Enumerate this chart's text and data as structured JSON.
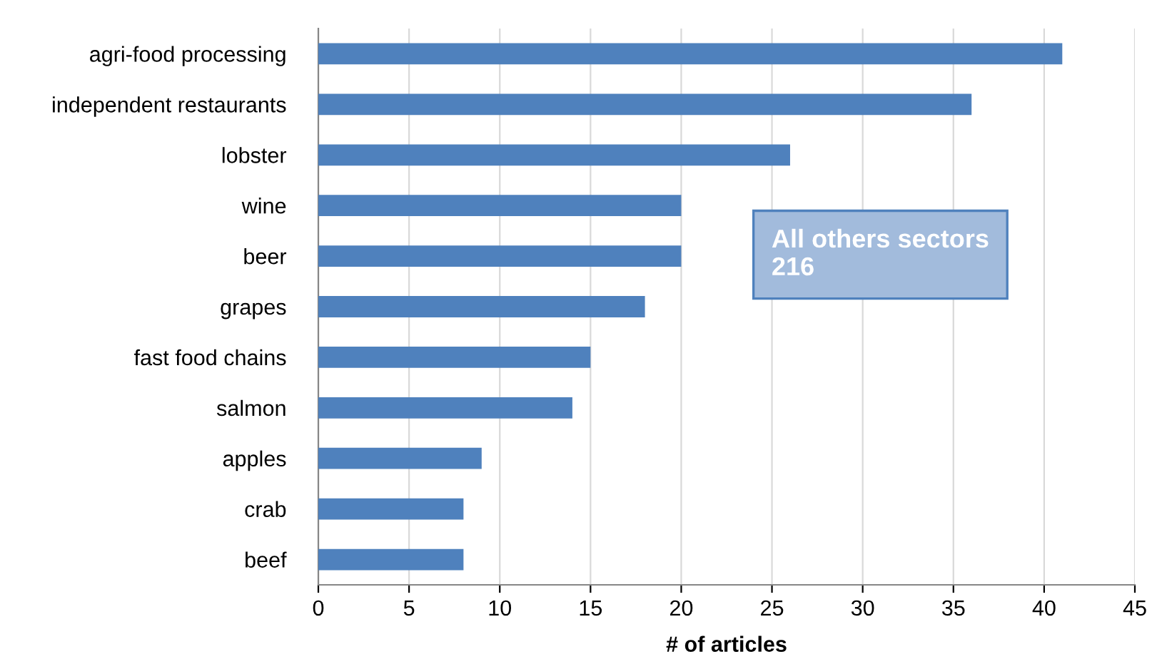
{
  "chart_data": {
    "type": "bar",
    "orientation": "horizontal",
    "xlabel": "# of articles",
    "categories": [
      "agri-food processing",
      "independent restaurants",
      "lobster",
      "wine",
      "beer",
      "grapes",
      "fast food chains",
      "salmon",
      "apples",
      "crab",
      "beef"
    ],
    "values": [
      41,
      36,
      26,
      20,
      20,
      18,
      15,
      14,
      9,
      8,
      8
    ],
    "color": "#4f81bd",
    "xlim": [
      0,
      45
    ],
    "xticks": [
      0,
      5,
      10,
      15,
      20,
      25,
      30,
      35,
      40,
      45
    ],
    "grid": "x",
    "annotations": [
      "All others sectors\n216"
    ]
  }
}
